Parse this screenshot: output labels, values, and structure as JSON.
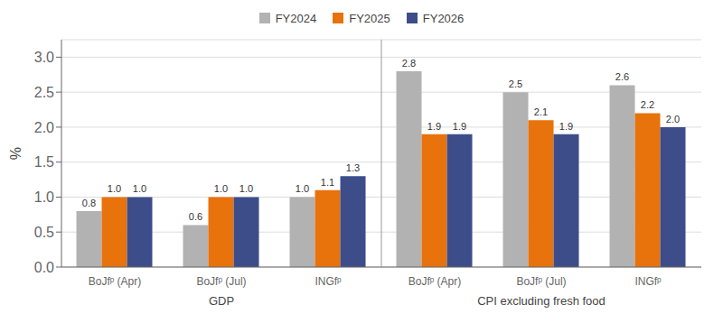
{
  "chart_data": {
    "type": "bar",
    "categories": [
      "BoJfᵖ (Apr)",
      "BoJfᵖ (Jul)",
      "INGfᵖ",
      "BoJfᵖ (Apr)",
      "BoJfᵖ (Jul)",
      "INGfᵖ"
    ],
    "sections": [
      "GDP",
      "GDP",
      "GDP",
      "CPI excluding fresh food",
      "CPI excluding fresh food",
      "CPI excluding fresh food"
    ],
    "series": [
      {
        "name": "FY2024",
        "color": "#b2b2b2",
        "values": [
          0.8,
          0.6,
          1.0,
          2.8,
          2.5,
          2.6
        ],
        "value_labels": [
          "0.8",
          "0.6",
          "1.0",
          "2.8",
          "2.5",
          "2.6"
        ]
      },
      {
        "name": "FY2025",
        "color": "#e8720c",
        "values": [
          1.0,
          1.0,
          1.1,
          1.9,
          2.1,
          2.2
        ],
        "value_labels": [
          "1.0",
          "1.0",
          "1.1",
          "1.9",
          "2.1",
          "2.2"
        ]
      },
      {
        "name": "FY2026",
        "color": "#3d4d8a",
        "values": [
          1.0,
          1.0,
          1.3,
          1.9,
          1.9,
          2.0
        ],
        "value_labels": [
          "1.0",
          "1.0",
          "1.3",
          "1.9",
          "1.9",
          "2.0"
        ]
      }
    ],
    "ylabel": "%",
    "ylim": [
      0.0,
      3.25
    ],
    "yticks": [
      {
        "value": 0.0,
        "label": "0.0"
      },
      {
        "value": 0.5,
        "label": "0.5"
      },
      {
        "value": 1.0,
        "label": "1.0"
      },
      {
        "value": 1.5,
        "label": "1.5"
      },
      {
        "value": 2.0,
        "label": "2.0"
      },
      {
        "value": 2.5,
        "label": "2.5"
      },
      {
        "value": 3.0,
        "label": "3.0"
      }
    ],
    "grid": true,
    "data_labels": true,
    "legend": "top"
  }
}
